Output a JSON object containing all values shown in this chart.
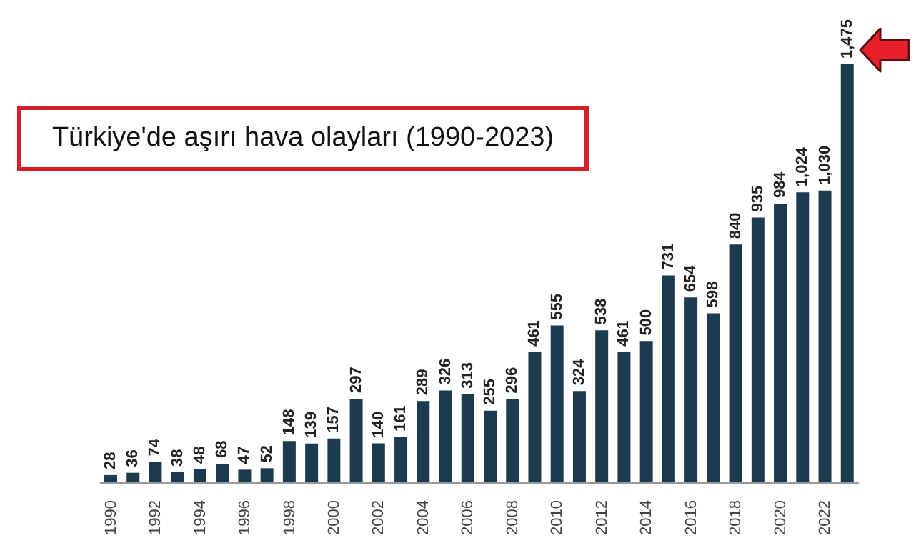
{
  "chart_data": {
    "type": "bar",
    "title": "Türkiye'de aşırı hava olayları (1990-2023)",
    "categories": [
      "1990",
      null,
      "1992",
      null,
      "1994",
      null,
      "1996",
      null,
      "1998",
      null,
      "2000",
      null,
      "2002",
      null,
      "2004",
      null,
      "2006",
      null,
      "2008",
      null,
      "2010",
      null,
      "2012",
      null,
      "2014",
      null,
      "2016",
      null,
      "2018",
      null,
      "2020",
      null,
      "2022",
      null
    ],
    "values": [
      28,
      36,
      74,
      38,
      48,
      68,
      47,
      52,
      148,
      139,
      157,
      297,
      140,
      161,
      289,
      326,
      313,
      255,
      296,
      461,
      555,
      324,
      538,
      461,
      500,
      731,
      654,
      598,
      840,
      935,
      984,
      1024,
      1030,
      1475
    ],
    "value_labels": [
      "28",
      "36",
      "74",
      "38",
      "48",
      "68",
      "47",
      "52",
      "148",
      "139",
      "157",
      "297",
      "140",
      "161",
      "289",
      "326",
      "313",
      "255",
      "296",
      "461",
      "555",
      "324",
      "538",
      "461",
      "500",
      "731",
      "654",
      "598",
      "840",
      "935",
      "984",
      "1,024",
      "1,030",
      "1,475"
    ],
    "color": "#1d3b4f",
    "grid": false,
    "legend": false
  }
}
